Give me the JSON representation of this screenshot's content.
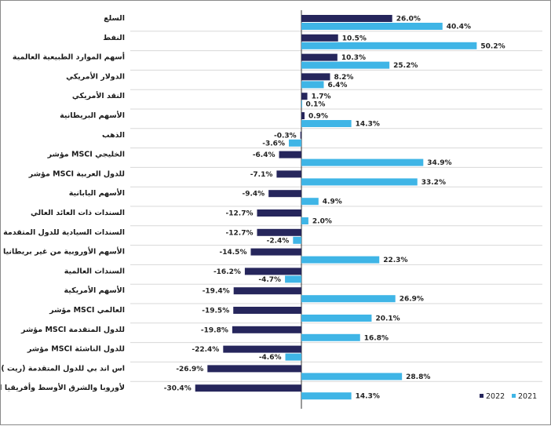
{
  "chart_data": {
    "type": "bar",
    "orientation": "horizontal",
    "categories": [
      "السلع",
      "النفط",
      "أسهم الموارد الطبيعية العالمية",
      "الدولار الأمريكي",
      "النقد الأمريكي",
      "الأسهم البريطانية",
      "الذهب",
      "مؤشر MSCI الخليجي",
      "مؤشر MSCI للدول العربية",
      "الأسهم اليابانية",
      "السندات ذات العائد العالي",
      "السندات السيادية للدول المتقدمة",
      "الأسهم الأوروبية من غير بريطانيا",
      "السندات العالمية",
      "الأسهم الأمريكية",
      "مؤشر MSCI العالمي",
      "مؤشر MSCI للدول المتقدمة",
      "مؤشر MSCI للدول الناشئة",
      "اس اند بي للدول المتقدمة (ريت )",
      "مؤشر MSCI لأوروبا والشرق الأوسط وأفريقيا"
    ],
    "series": [
      {
        "name": "2022",
        "color": "#26265c",
        "values": [
          26.0,
          10.5,
          10.3,
          8.2,
          1.7,
          0.9,
          -0.3,
          -6.4,
          -7.1,
          -9.4,
          -12.7,
          -12.7,
          -14.5,
          -16.2,
          -19.4,
          -19.5,
          -19.8,
          -22.4,
          -26.9,
          -30.4
        ],
        "labels": [
          "26.0%",
          "10.5%",
          "10.3%",
          "8.2%",
          "1.7%",
          "0.9%",
          "-0.3%",
          "-6.4%",
          "-7.1%",
          "-9.4%",
          "-12.7%",
          "-12.7%",
          "-14.5%",
          "-16.2%",
          "-19.4%",
          "-19.5%",
          "-19.8%",
          "-22.4%",
          "-26.9%",
          "-30.4%"
        ]
      },
      {
        "name": "2021",
        "color": "#3fb5e6",
        "values": [
          40.4,
          50.2,
          25.2,
          6.4,
          0.1,
          14.3,
          -3.6,
          34.9,
          33.2,
          4.9,
          2.0,
          -2.4,
          22.3,
          -4.7,
          26.9,
          20.1,
          16.8,
          -4.6,
          28.8,
          14.3
        ],
        "labels": [
          "40.4%",
          "50.2%",
          "25.2%",
          "6.4%",
          "0.1%",
          "14.3%",
          "-3.6%",
          "34.9%",
          "33.2%",
          "4.9%",
          "2.0%",
          "-2.4%",
          "22.3%",
          "-4.7%",
          "26.9%",
          "20.1%",
          "16.8%",
          "-4.6%",
          "28.8%",
          "14.3%"
        ]
      }
    ],
    "xlim": [
      -45,
      60
    ],
    "legend": {
      "position": "bottom-right",
      "entries": [
        "2022",
        "2021"
      ]
    },
    "grid": "horizontal-separators"
  }
}
